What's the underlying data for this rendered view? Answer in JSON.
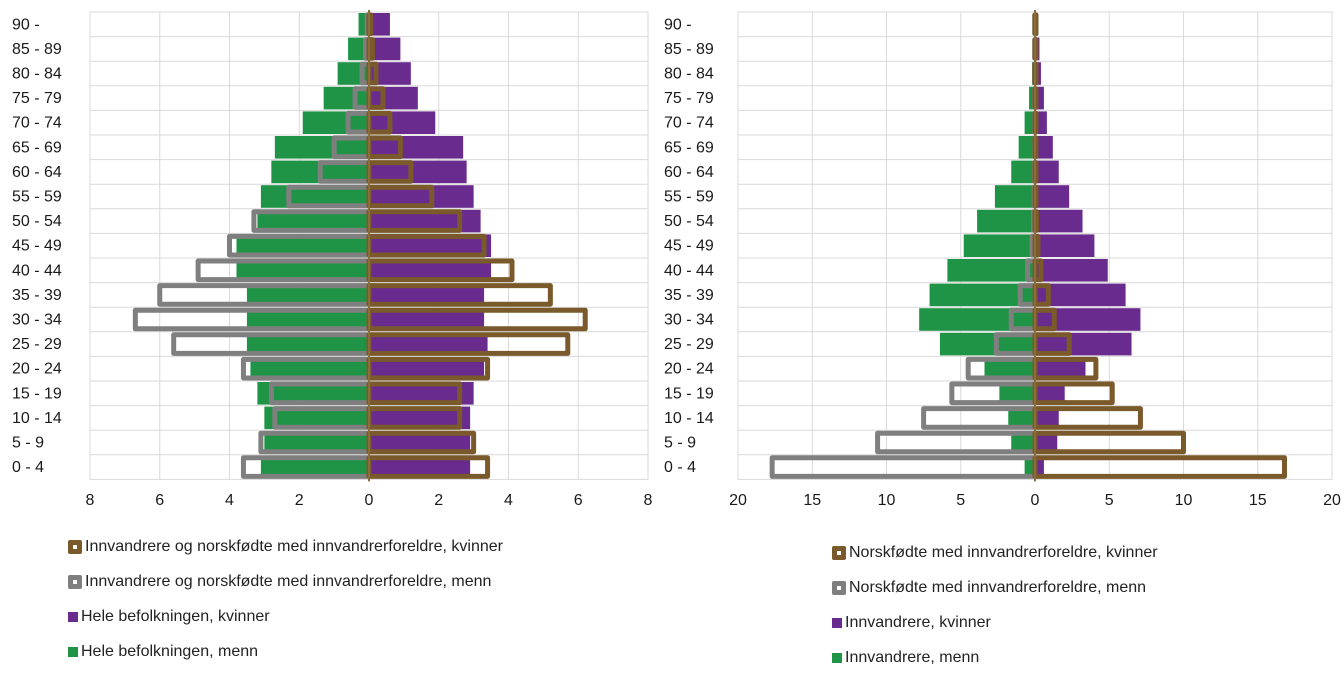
{
  "colors": {
    "green": "#1f9447",
    "purple": "#6a2b8e",
    "brown": "#7a5a2a",
    "gray": "#7f7f7f",
    "grid": "#d9d9d9"
  },
  "chart_data": [
    {
      "type": "bar",
      "subtype": "population-pyramid",
      "categories": [
        "0 - 4",
        "5 - 9",
        "10 - 14",
        "15 - 19",
        "20 - 24",
        "25 - 29",
        "30 - 34",
        "35 - 39",
        "40 - 44",
        "45 - 49",
        "50 - 54",
        "55 - 59",
        "60 - 64",
        "65 - 69",
        "70 - 74",
        "75 - 79",
        "80 - 84",
        "85 - 89",
        "90 -"
      ],
      "xlim": [
        -8,
        8
      ],
      "x_ticks": [
        "8",
        "6",
        "4",
        "2",
        "0",
        "2",
        "4",
        "6",
        "8"
      ],
      "grid": true,
      "series": [
        {
          "name": "Hele befolkningen, menn",
          "style": "filled",
          "color": "#1f9447",
          "side": "left",
          "values": [
            3.1,
            3.0,
            3.0,
            3.2,
            3.4,
            3.5,
            3.5,
            3.5,
            3.8,
            3.8,
            3.2,
            3.1,
            2.8,
            2.7,
            1.9,
            1.3,
            0.9,
            0.6,
            0.3
          ]
        },
        {
          "name": "Hele befolkningen, kvinner",
          "style": "filled",
          "color": "#6a2b8e",
          "side": "right",
          "values": [
            2.9,
            2.9,
            2.9,
            3.0,
            3.3,
            3.4,
            3.3,
            3.3,
            3.5,
            3.5,
            3.2,
            3.0,
            2.8,
            2.7,
            1.9,
            1.4,
            1.2,
            0.9,
            0.6
          ]
        },
        {
          "name": "Innvandrere og norskfødte med innvandrerforeldre, menn",
          "style": "outline",
          "color": "#7f7f7f",
          "side": "left",
          "values": [
            3.6,
            3.1,
            2.7,
            2.8,
            3.6,
            5.6,
            6.7,
            6.0,
            4.9,
            4.0,
            3.3,
            2.3,
            1.4,
            1.0,
            0.6,
            0.4,
            0.2,
            0.1,
            0.05
          ]
        },
        {
          "name": "Innvandrere og norskfødte med innvandrerforeldre, kvinner",
          "style": "outline",
          "color": "#7a5a2a",
          "side": "right",
          "values": [
            3.4,
            3.0,
            2.6,
            2.6,
            3.4,
            5.7,
            6.2,
            5.2,
            4.1,
            3.3,
            2.6,
            1.8,
            1.2,
            0.9,
            0.6,
            0.4,
            0.2,
            0.1,
            0.05
          ]
        }
      ],
      "legend": {
        "position": "bottom",
        "items": [
          {
            "label": "Innvandrere og norskfødte med innvandrerforeldre, kvinner",
            "color": "#7a5a2a",
            "style": "outline"
          },
          {
            "label": "Innvandrere og norskfødte med innvandrerforeldre, menn",
            "color": "#7f7f7f",
            "style": "outline"
          },
          {
            "label": "Hele befolkningen, kvinner",
            "color": "#6a2b8e",
            "style": "filled"
          },
          {
            "label": "Hele befolkningen, menn",
            "color": "#1f9447",
            "style": "filled"
          }
        ]
      }
    },
    {
      "type": "bar",
      "subtype": "population-pyramid",
      "categories": [
        "0 - 4",
        "5 - 9",
        "10 - 14",
        "15 - 19",
        "20 - 24",
        "25 - 29",
        "30 - 34",
        "35 - 39",
        "40 - 44",
        "45 - 49",
        "50 - 54",
        "55 - 59",
        "60 - 64",
        "65 - 69",
        "70 - 74",
        "75 - 79",
        "80 - 84",
        "85 - 89",
        "90 -"
      ],
      "xlim": [
        -20,
        20
      ],
      "x_ticks": [
        "20",
        "15",
        "10",
        "5",
        "0",
        "5",
        "10",
        "15",
        "20"
      ],
      "grid": true,
      "series": [
        {
          "name": "Innvandrere, menn",
          "style": "filled",
          "color": "#1f9447",
          "side": "left",
          "values": [
            0.7,
            1.6,
            1.8,
            2.4,
            3.4,
            6.4,
            7.8,
            7.1,
            5.9,
            4.8,
            3.9,
            2.7,
            1.6,
            1.1,
            0.7,
            0.4,
            0.2,
            0.1,
            0.05
          ]
        },
        {
          "name": "Innvandrere, kvinner",
          "style": "filled",
          "color": "#6a2b8e",
          "side": "right",
          "values": [
            0.6,
            1.5,
            1.6,
            2.0,
            3.4,
            6.5,
            7.1,
            6.1,
            4.9,
            4.0,
            3.2,
            2.3,
            1.6,
            1.2,
            0.8,
            0.6,
            0.4,
            0.3,
            0.2
          ]
        },
        {
          "name": "Norskfødte med innvandrerforeldre, menn",
          "style": "outline",
          "color": "#7f7f7f",
          "side": "left",
          "values": [
            17.7,
            10.6,
            7.5,
            5.6,
            4.5,
            2.6,
            1.6,
            1.0,
            0.5,
            0.2,
            0.1,
            0.05,
            0.03,
            0.02,
            0.02,
            0.02,
            0.02,
            0.02,
            0.02
          ]
        },
        {
          "name": "Norskfødte med innvandrerforeldre, kvinner",
          "style": "outline",
          "color": "#7a5a2a",
          "side": "right",
          "values": [
            16.8,
            10.0,
            7.1,
            5.2,
            4.1,
            2.3,
            1.3,
            0.9,
            0.4,
            0.2,
            0.1,
            0.05,
            0.03,
            0.02,
            0.02,
            0.02,
            0.02,
            0.02,
            0.02
          ]
        }
      ],
      "legend": {
        "position": "bottom",
        "items": [
          {
            "label": "Norskfødte med innvandrerforeldre, kvinner",
            "color": "#7a5a2a",
            "style": "outline"
          },
          {
            "label": "Norskfødte med innvandrerforeldre, menn",
            "color": "#7f7f7f",
            "style": "outline"
          },
          {
            "label": "Innvandrere, kvinner",
            "color": "#6a2b8e",
            "style": "filled"
          },
          {
            "label": "Innvandrere, menn",
            "color": "#1f9447",
            "style": "filled"
          }
        ]
      }
    }
  ]
}
